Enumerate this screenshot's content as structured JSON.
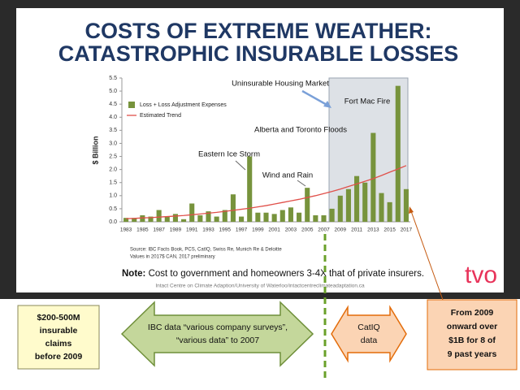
{
  "chart_data": {
    "type": "bar",
    "title": [
      "COSTS OF EXTREME WEATHER:",
      "CATASTROPHIC INSURABLE LOSSES"
    ],
    "y_label": "$ Billion",
    "categories": [
      "1983",
      null,
      "1985",
      null,
      "1987",
      null,
      "1989",
      null,
      "1991",
      null,
      "1993",
      null,
      "1995",
      null,
      "1997",
      null,
      "1999",
      null,
      "2001",
      null,
      "2003",
      null,
      "2005",
      null,
      "2007",
      null,
      "2009",
      null,
      "2011",
      null,
      "2013",
      null,
      "2015",
      null,
      "2017"
    ],
    "series": [
      {
        "name": "Loss + Loss Adjustment Expenses",
        "type": "bar",
        "color": "#77933c",
        "values": [
          0.15,
          0.15,
          0.25,
          0.2,
          0.45,
          0.2,
          0.3,
          0.1,
          0.7,
          0.25,
          0.4,
          0.2,
          0.45,
          1.05,
          0.2,
          2.5,
          0.35,
          0.35,
          0.3,
          0.45,
          0.55,
          0.35,
          1.3,
          0.25,
          0.25,
          0.5,
          1.0,
          1.25,
          1.75,
          1.5,
          3.4,
          1.1,
          0.75,
          5.2,
          1.25
        ]
      },
      {
        "name": "Estimated Trend",
        "type": "line",
        "color": "#e0504a",
        "values": [
          0.12,
          0.13,
          0.15,
          0.16,
          0.18,
          0.2,
          0.22,
          0.24,
          0.27,
          0.3,
          0.33,
          0.36,
          0.4,
          0.44,
          0.48,
          0.52,
          0.57,
          0.62,
          0.68,
          0.74,
          0.8,
          0.86,
          0.93,
          1.0,
          1.08,
          1.16,
          1.25,
          1.35,
          1.45,
          1.55,
          1.65,
          1.77,
          1.9,
          2.02,
          2.15
        ]
      }
    ],
    "ylim": [
      0,
      5.5
    ],
    "yticks": [
      {
        "value": 0,
        "label": "0.0"
      },
      0.5,
      {
        "value": 1,
        "label": "1.0"
      },
      1.5,
      {
        "value": 2,
        "label": "2.0"
      },
      2.5,
      {
        "value": 3,
        "label": "3.0"
      },
      3.5,
      {
        "value": 4,
        "label": "4.0"
      },
      4.5,
      {
        "value": 5,
        "label": "5.0"
      },
      5.5
    ],
    "annotations": [
      "Uninsurable Housing Market",
      "Fort Mac Fire",
      "Alberta and Toronto Floods",
      "Eastern Ice Storm",
      "Wind and Rain"
    ],
    "source": [
      "Source: IBC Facts Book, PCS, CatIQ, Swiss Re, Munich Re & Deloitte",
      "Values in 2017$ CAN, 2017 preliminary"
    ]
  },
  "note": {
    "label": "Note:",
    "text": "Cost to government and homeowners 3-4X that of private insurers."
  },
  "footer": "Intact Centre on Climate Adaption/University of Waterloo/intactcentreclimateadaptation.ca",
  "logo": "tvo",
  "callouts": {
    "claims": [
      "$200-500M",
      "insurable",
      "claims",
      "before 2009"
    ],
    "ibc": [
      "IBC data “various company surveys”,",
      "“various data” to 2007"
    ],
    "catiq": [
      "CatIQ",
      "data"
    ],
    "since_2009": [
      "From 2009",
      "onward over",
      "$1B for 8 of",
      "9 past years"
    ]
  }
}
